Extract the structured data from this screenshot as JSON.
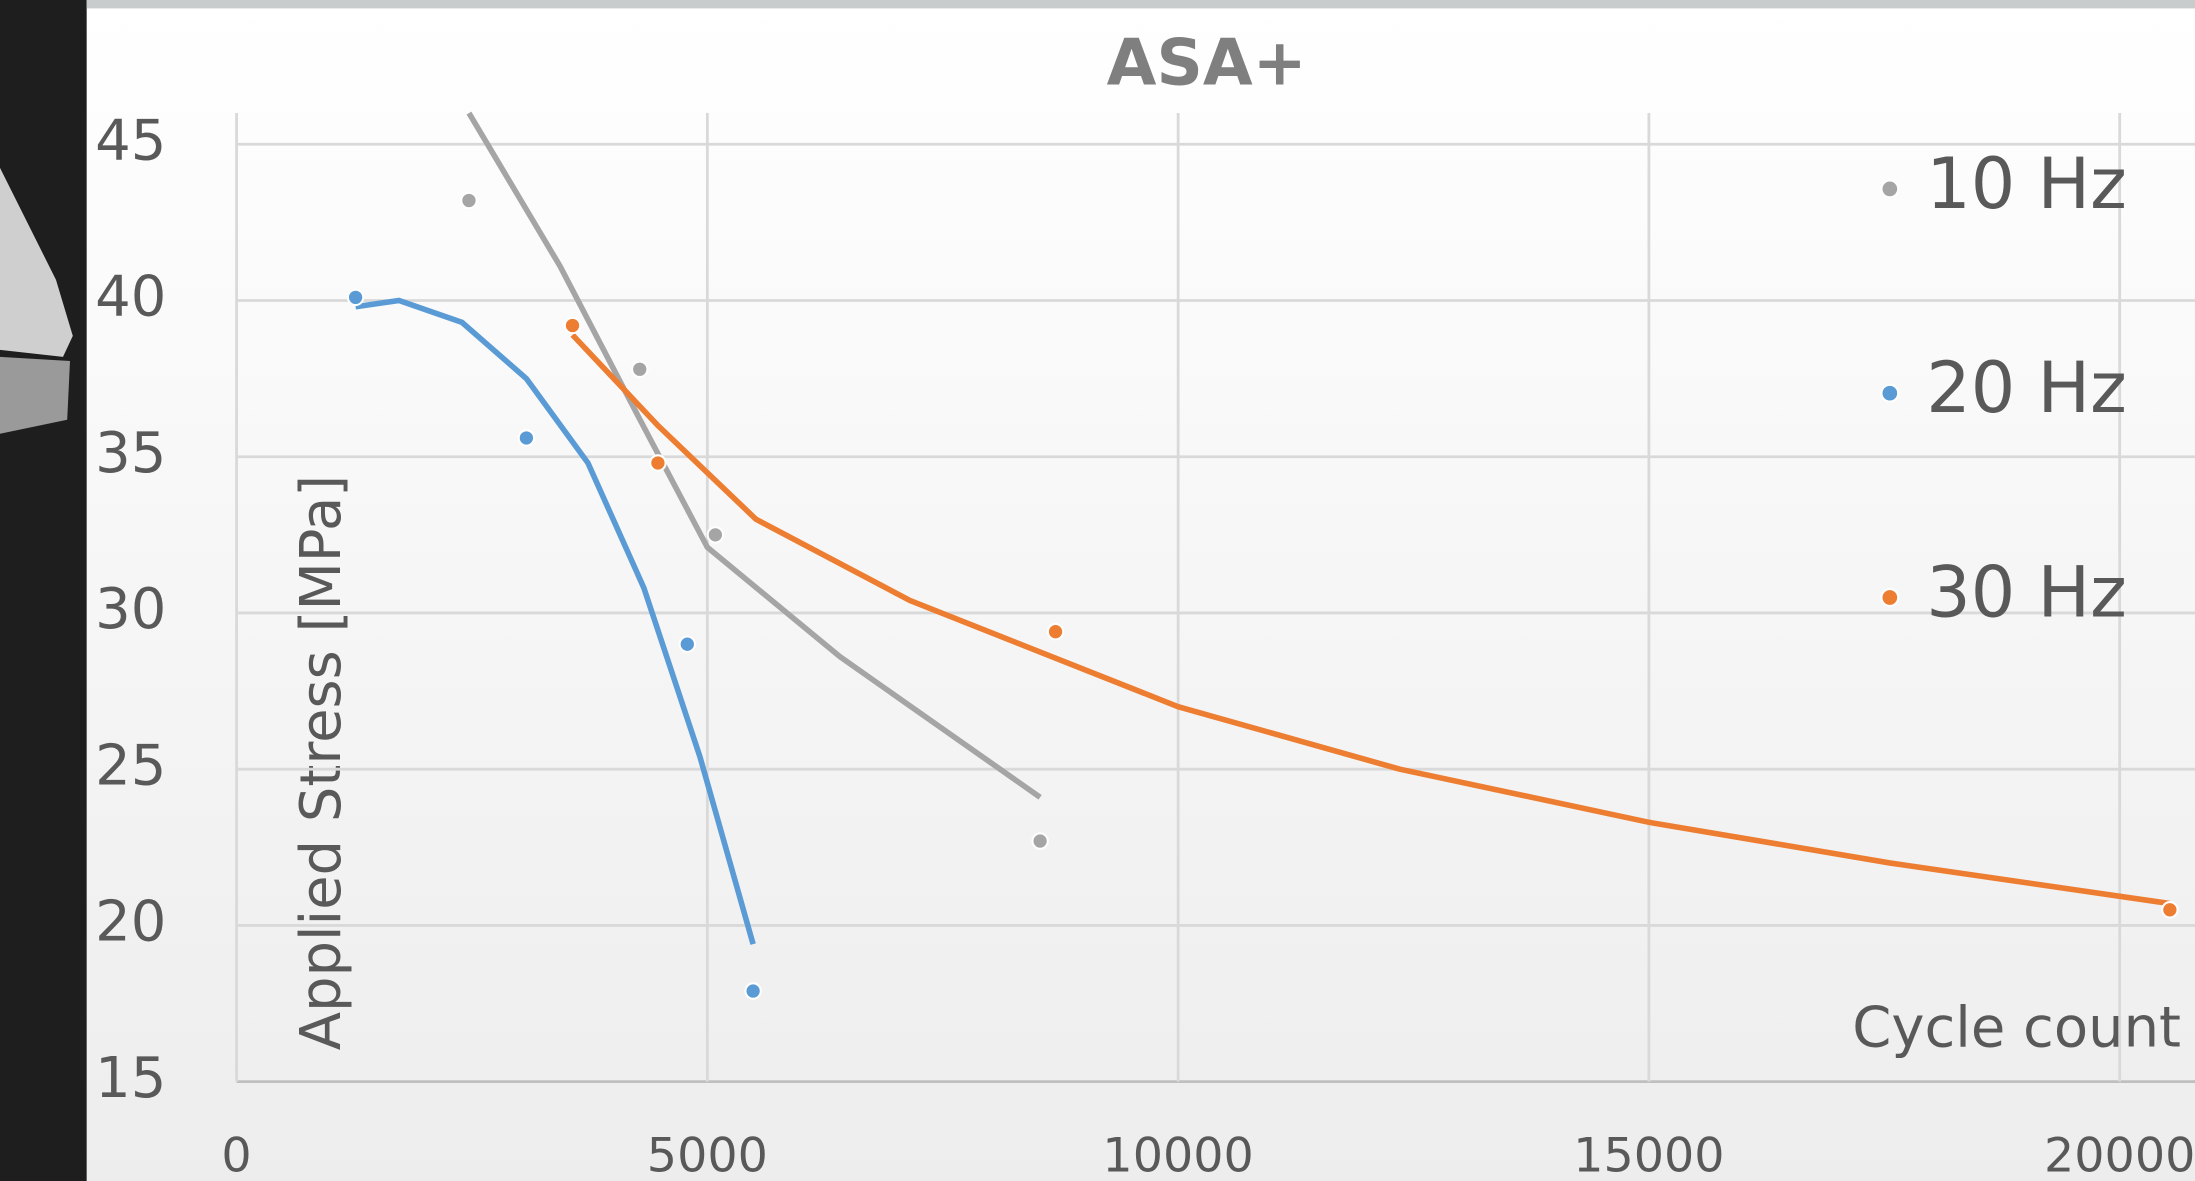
{
  "chart_data": {
    "type": "scatter",
    "title": "ASA+",
    "x_label": "Cycle count",
    "y_label": "Applied Stress [MPa]",
    "xlim": [
      0,
      20800
    ],
    "ylim": [
      15,
      46
    ],
    "xticks": [
      0,
      5000,
      10000,
      15000,
      20000
    ],
    "yticks": [
      15,
      20,
      25,
      30,
      35,
      40,
      45
    ],
    "grid": true,
    "legend": "right",
    "series": [
      {
        "name": "10 Hz",
        "color": "#a5a5a5",
        "x": [
          2468,
          4282,
          5085,
          8534
        ],
        "values": [
          43.2,
          37.8,
          32.5,
          22.7
        ],
        "trend_x": [
          2468,
          3435,
          4282,
          5000,
          6408,
          8534
        ],
        "trend_values": [
          46.0,
          41.1,
          36.2,
          32.1,
          28.6,
          24.1
        ]
      },
      {
        "name": "20 Hz",
        "color": "#5b9bd5",
        "x": [
          1264,
          3078,
          4787,
          5486
        ],
        "values": [
          40.1,
          35.6,
          29.0,
          17.9
        ],
        "trend_x": [
          1264,
          1725,
          2394,
          3078,
          3732,
          4326,
          4921,
          5486
        ],
        "trend_values": [
          39.8,
          40.0,
          39.3,
          37.5,
          34.8,
          30.8,
          25.4,
          19.4
        ]
      },
      {
        "name": "30 Hz",
        "color": "#ed7d31",
        "x": [
          3568,
          4475,
          8698,
          20533
        ],
        "values": [
          39.2,
          34.8,
          29.4,
          20.5
        ],
        "trend_x": [
          3568,
          4475,
          5516,
          7151,
          10000,
          12355,
          15000,
          17557,
          20533
        ],
        "trend_values": [
          38.9,
          36.0,
          33.0,
          30.4,
          27.0,
          25.0,
          23.3,
          22.0,
          20.7
        ]
      }
    ]
  }
}
